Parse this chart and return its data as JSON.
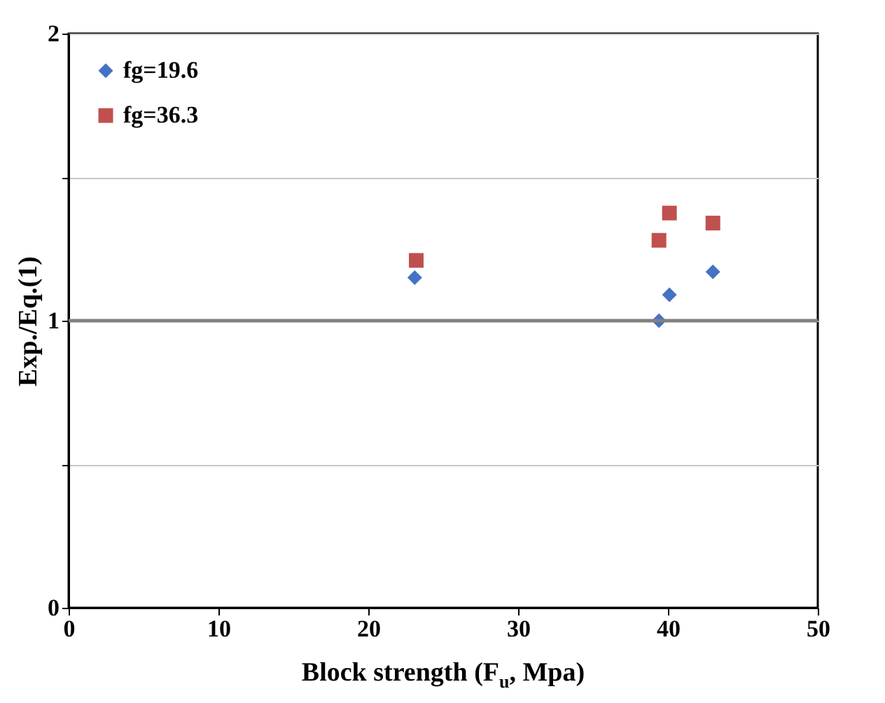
{
  "chart_data": {
    "type": "scatter",
    "xlabel": "Block strength (F$_{u}$, Mpa)",
    "ylabel": "Exp./Eq.(1)",
    "xlim": [
      0,
      50
    ],
    "xticks": [
      0,
      10,
      20,
      30,
      40,
      50
    ],
    "ylim": [
      0,
      2
    ],
    "yticks": [
      0,
      {
        "value": 0.5,
        "label": null
      },
      1,
      {
        "value": 1.5,
        "label": null
      },
      2
    ],
    "grid": "y",
    "legend": "top left",
    "ref_lines": [
      {
        "axis": "y",
        "value": 1,
        "color": "#808080"
      }
    ],
    "series": [
      {
        "name": "fg=19.6",
        "color": "#4472c4",
        "marker": "diamond",
        "x": [
          23.1,
          39.4,
          40.1,
          43.0
        ],
        "values": [
          1.15,
          1.0,
          1.09,
          1.17
        ]
      },
      {
        "name": "fg=36.3",
        "color": "#c0504d",
        "marker": "square",
        "x": [
          23.2,
          39.4,
          40.1,
          43.0
        ],
        "values": [
          1.21,
          1.28,
          1.375,
          1.34
        ]
      }
    ]
  }
}
